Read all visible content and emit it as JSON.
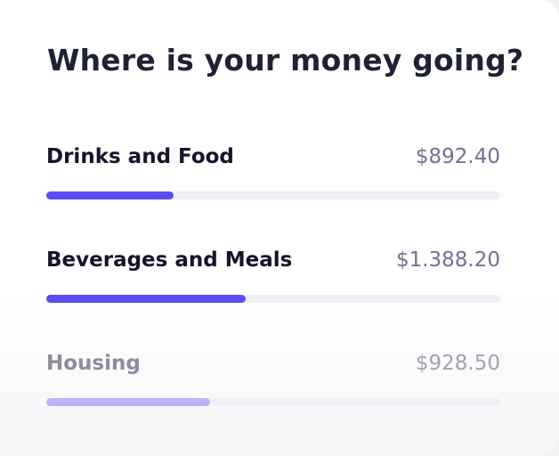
{
  "title": "Where is your money going?",
  "items": [
    {
      "label": "Drinks and Food",
      "amount": "$892.40",
      "progress": 28
    },
    {
      "label": "Beverages and Meals",
      "amount": "$1.388.20",
      "progress": 44
    },
    {
      "label": "Housing",
      "amount": "$928.50",
      "progress": 36
    }
  ]
}
